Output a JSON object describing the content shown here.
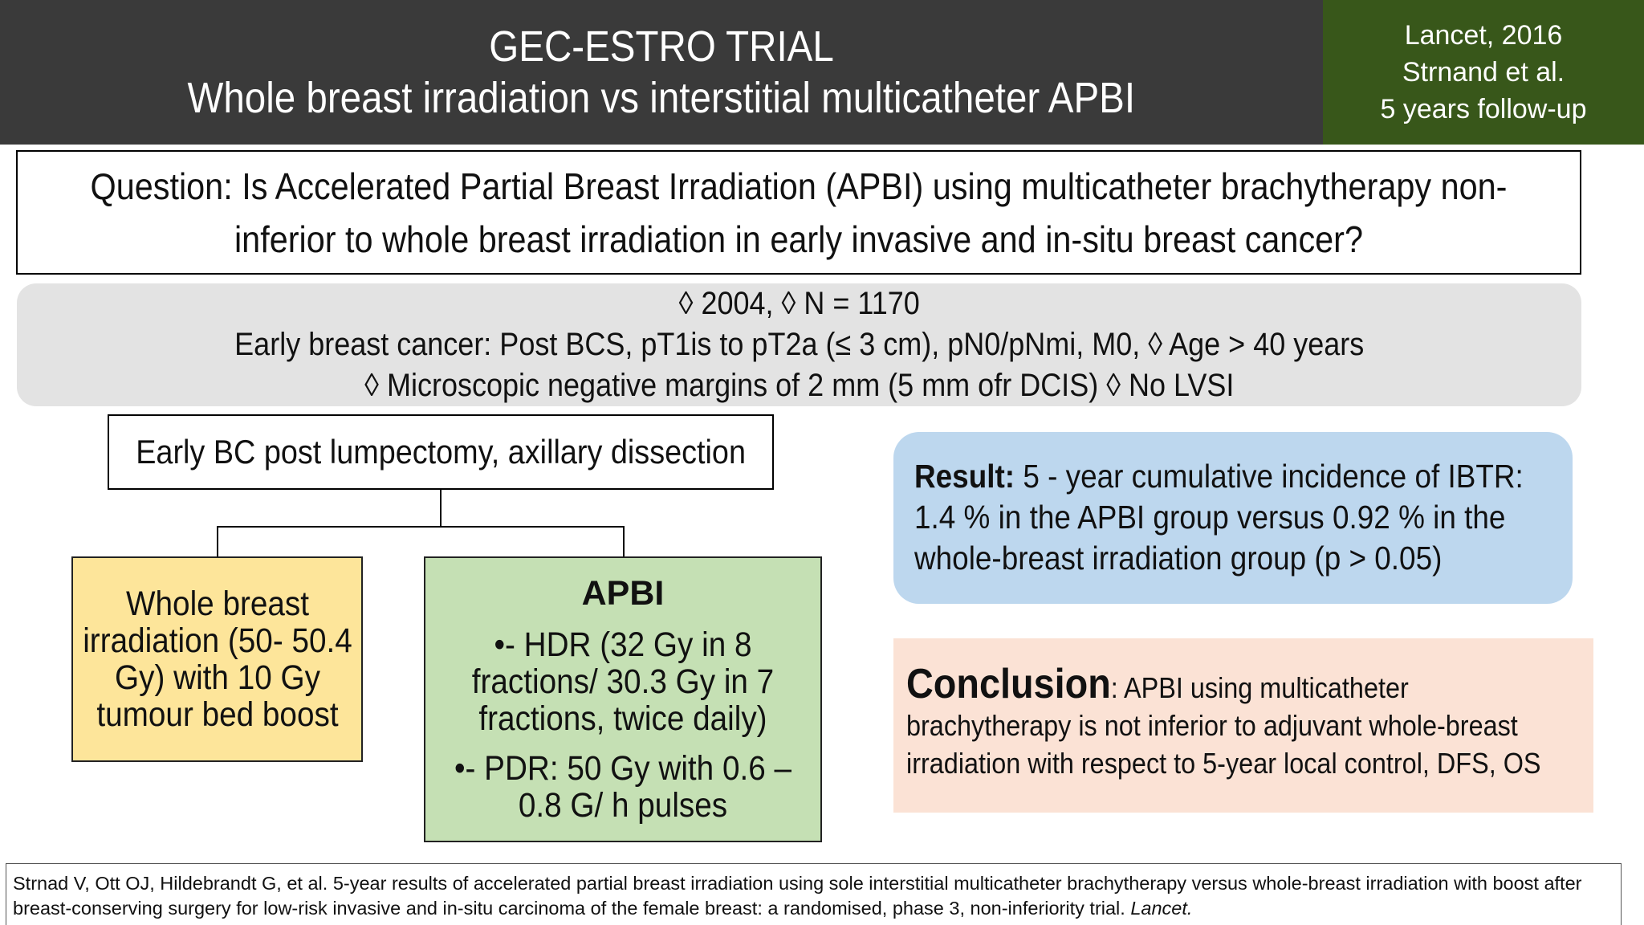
{
  "header": {
    "title": "GEC-ESTRO TRIAL",
    "subtitle": "Whole breast irradiation vs interstitial multicatheter APBI",
    "citation": [
      "Lancet, 2016",
      "Strnand et al.",
      "5 years follow-up"
    ]
  },
  "question": "Question:  Is Accelerated Partial Breast Irradiation (APBI) using multicatheter brachytherapy non-inferior to whole breast irradiation in early invasive and in-situ breast cancer?",
  "criteria": [
    "◊ 2004, ◊ N = 1170",
    "Early breast cancer: Post BCS, pT1is to pT2a (≤ 3 cm), pN0/pNmi, M0, ◊ Age > 40 years",
    "◊ Microscopic negative margins of 2 mm (5 mm ofr DCIS) ◊ No LVSI"
  ],
  "flow": {
    "root": "Early BC post lumpectomy, axillary dissection",
    "arm_wbi": "Whole breast irradiation (50- 50.4 Gy) with 10 Gy tumour bed boost",
    "arm_apbi": {
      "title": "APBI",
      "items": [
        "•- HDR (32 Gy in 8 fractions/ 30.3 Gy in 7 fractions, twice daily)",
        "•- PDR: 50 Gy with 0.6 – 0.8 G/ h pulses"
      ]
    }
  },
  "result": {
    "label": "Result:",
    "text": " 5 - year cumulative incidence of IBTR: 1.4 % in the APBI group versus 0.92 % in the whole-breast irradiation group (p > 0.05)"
  },
  "conclusion": {
    "label": "Conclusion",
    "text": ": APBI using multicatheter brachytherapy is not inferior to adjuvant whole-breast irradiation with respect to 5-year local control, DFS, OS"
  },
  "reference": {
    "text": "Strnad V, Ott OJ, Hildebrandt G, et al. 5-year results of accelerated partial breast irradiation using sole interstitial multicatheter brachytherapy versus whole-breast irradiation with boost after breast-conserving surgery for low-risk invasive and in-situ carcinoma of the female breast: a randomised, phase 3, non-inferiority trial. ",
    "journal": "Lancet."
  }
}
